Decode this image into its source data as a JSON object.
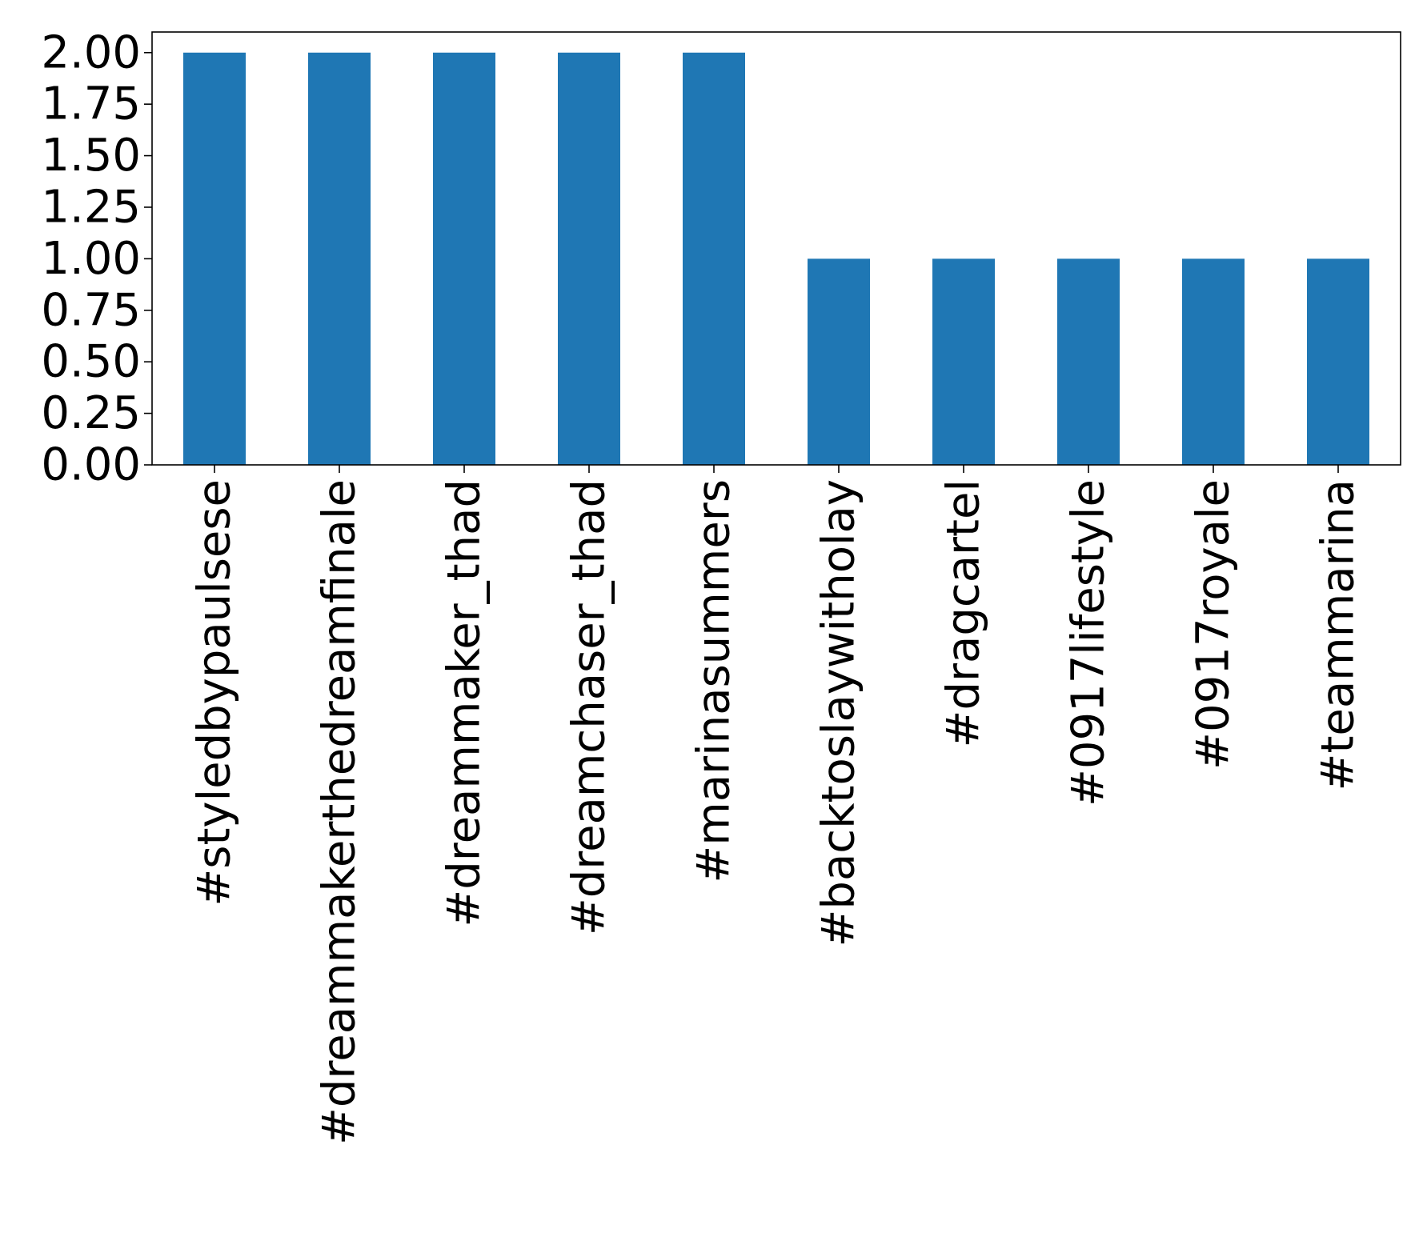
{
  "chart_data": {
    "type": "bar",
    "categories": [
      "#styledbypaulsese",
      "#dreammakerthedreamfinale",
      "#dreammaker_thad",
      "#dreamchaser_thad",
      "#marinasummers",
      "#backtoslaywitholay",
      "#dragcartel",
      "#0917lifestyle",
      "#0917royale",
      "#teammarina"
    ],
    "values": [
      2,
      2,
      2,
      2,
      2,
      1,
      1,
      1,
      1,
      1
    ],
    "yticks": [
      "0.00",
      "0.25",
      "0.50",
      "0.75",
      "1.00",
      "1.25",
      "1.50",
      "1.75",
      "2.00"
    ],
    "ylim": [
      0,
      2.1
    ],
    "grid": false,
    "legend": "none",
    "bar_color": "#1f77b4",
    "title": "",
    "xlabel": "",
    "ylabel": ""
  }
}
